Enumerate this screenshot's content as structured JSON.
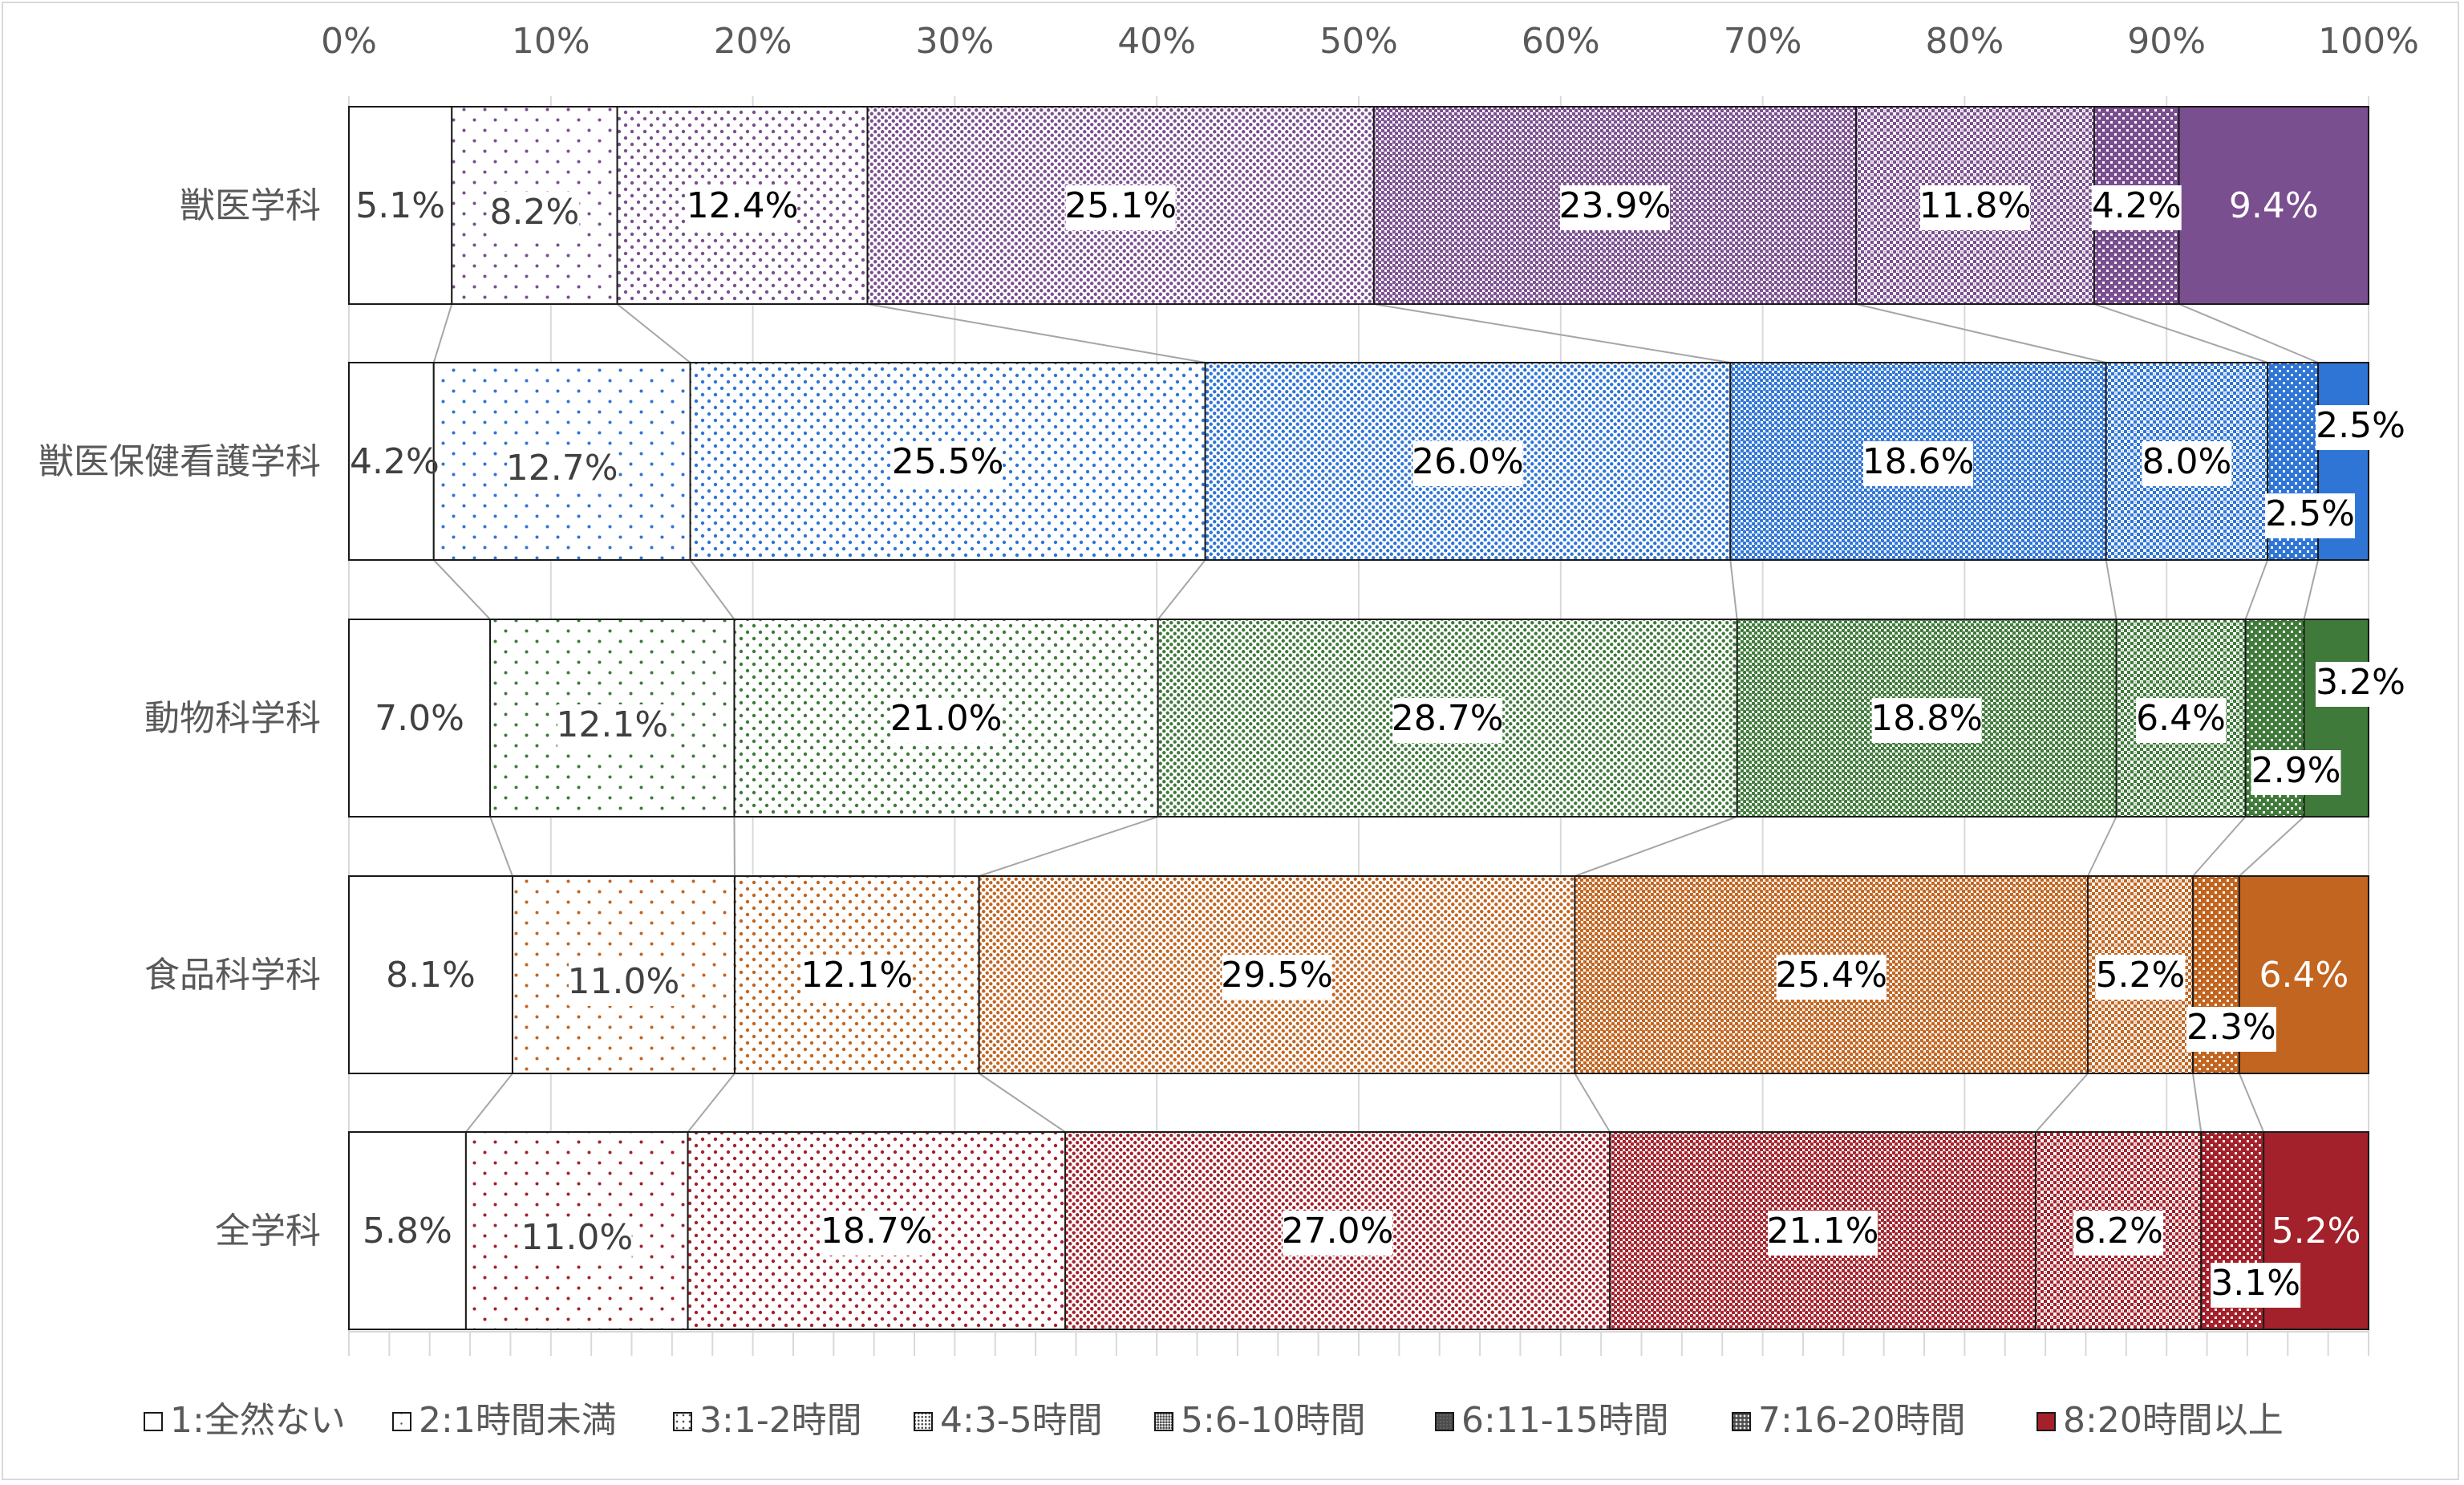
{
  "chart_data": {
    "type": "bar",
    "orientation": "horizontal",
    "stacked": "percent",
    "categories": [
      "獣医学科",
      "獣医保健看護学科",
      "動物科学科",
      "食品科学科",
      "全学科"
    ],
    "category_colors": [
      "#7a4f8f",
      "#2e75d6",
      "#3f7a3a",
      "#c26520",
      "#a3212b"
    ],
    "series": [
      {
        "name": "1:全然ない",
        "values": [
          5.1,
          4.2,
          7.0,
          8.1,
          5.8
        ]
      },
      {
        "name": "2:1時間未満",
        "values": [
          8.2,
          12.7,
          12.1,
          11.0,
          11.0
        ]
      },
      {
        "name": "3:1-2時間",
        "values": [
          12.4,
          25.5,
          21.0,
          12.1,
          18.7
        ]
      },
      {
        "name": "4:3-5時間",
        "values": [
          25.1,
          26.0,
          28.7,
          29.5,
          27.0
        ]
      },
      {
        "name": "5:6-10時間",
        "values": [
          23.9,
          18.6,
          18.8,
          25.4,
          21.1
        ]
      },
      {
        "name": "6:11-15時間",
        "values": [
          11.8,
          8.0,
          6.4,
          5.2,
          8.2
        ]
      },
      {
        "name": "7:16-20時間",
        "values": [
          4.2,
          2.5,
          2.9,
          2.3,
          3.1
        ]
      },
      {
        "name": "8:20時間以上",
        "values": [
          9.4,
          2.5,
          3.2,
          6.4,
          5.2
        ]
      }
    ],
    "data_labels": [
      [
        "5.1%",
        "8.2%",
        "12.4%",
        "25.1%",
        "23.9%",
        "11.8%",
        "4.2%",
        "9.4%"
      ],
      [
        "4.2%",
        "12.7%",
        "25.5%",
        "26.0%",
        "18.6%",
        "8.0%",
        "2.5%",
        "2.5%"
      ],
      [
        "7.0%",
        "12.1%",
        "21.0%",
        "28.7%",
        "18.8%",
        "6.4%",
        "2.9%",
        "3.2%"
      ],
      [
        "8.1%",
        "11.0%",
        "12.1%",
        "29.5%",
        "25.4%",
        "5.2%",
        "2.3%",
        "6.4%"
      ],
      [
        "5.8%",
        "11.0%",
        "18.7%",
        "27.0%",
        "21.1%",
        "8.2%",
        "3.1%",
        "5.2%"
      ]
    ],
    "x_ticks": [
      "0%",
      "10%",
      "20%",
      "30%",
      "40%",
      "50%",
      "60%",
      "70%",
      "80%",
      "90%",
      "100%"
    ],
    "xlim": [
      0,
      100
    ],
    "axis_position": "top",
    "series_lines": true,
    "legend_position": "bottom",
    "title": "",
    "xlabel": "",
    "ylabel": ""
  }
}
